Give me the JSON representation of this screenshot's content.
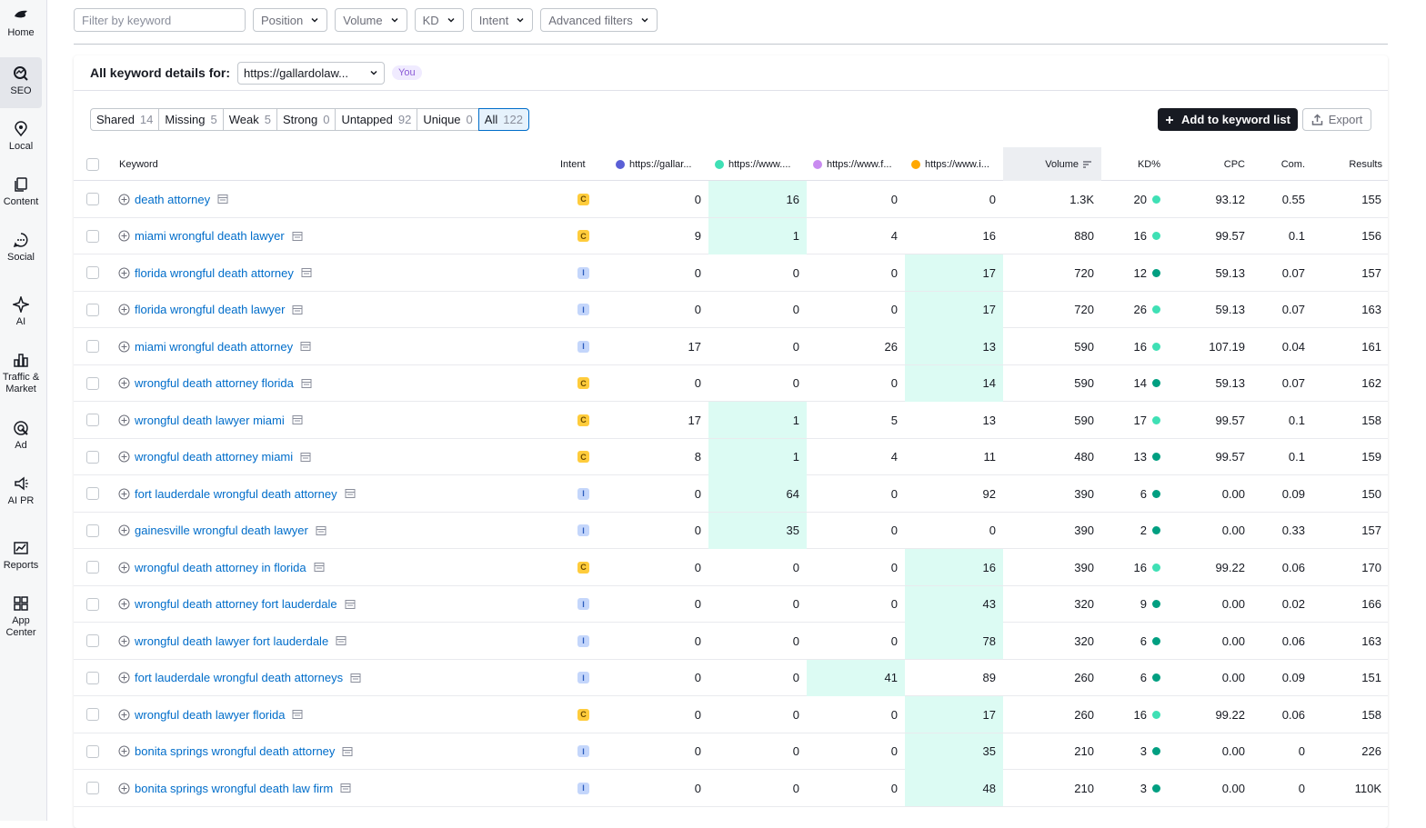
{
  "sidebar": {
    "items": [
      {
        "label": "Home",
        "icon": "home-icon"
      },
      {
        "label": "SEO",
        "icon": "seo-icon",
        "active": true
      },
      {
        "label": "Local",
        "icon": "local-pin-icon"
      },
      {
        "label": "Content",
        "icon": "content-icon"
      },
      {
        "label": "Social",
        "icon": "social-chat-icon"
      },
      {
        "label": "AI",
        "icon": "ai-icon"
      },
      {
        "label": "Traffic &",
        "label2": "Market",
        "icon": "traffic-chart-icon"
      },
      {
        "label": "Ad",
        "icon": "ad-icon"
      },
      {
        "label": "AI PR",
        "icon": "ai-pr-icon"
      },
      {
        "label": "Reports",
        "icon": "reports-icon"
      },
      {
        "label": "App",
        "label2": "Center",
        "icon": "app-center-icon"
      }
    ]
  },
  "filters": {
    "search_placeholder": "Filter by keyword",
    "position": "Position",
    "volume": "Volume",
    "kd": "KD",
    "intent": "Intent",
    "advanced": "Advanced filters"
  },
  "card": {
    "title": "All keyword details for:",
    "domain": "https://gallardolaw...",
    "you_badge": "You"
  },
  "segments": [
    {
      "label": "Shared",
      "count": "14"
    },
    {
      "label": "Missing",
      "count": "5"
    },
    {
      "label": "Weak",
      "count": "5"
    },
    {
      "label": "Strong",
      "count": "0"
    },
    {
      "label": "Untapped",
      "count": "92"
    },
    {
      "label": "Unique",
      "count": "0"
    },
    {
      "label": "All",
      "count": "122",
      "active": true
    }
  ],
  "actions": {
    "add_label": "Add to keyword list",
    "export_label": "Export"
  },
  "colors": {
    "d1": "#5a5fd6",
    "d2": "#3fe0b5",
    "d3": "#c98bf0",
    "d4": "#ffa800",
    "kd_light": "#3fe0b5",
    "kd_dark": "#009f81",
    "highlight": "#dcfbf3"
  },
  "columns": {
    "keyword": "Keyword",
    "intent": "Intent",
    "d1": "https://gallar...",
    "d2": "https://www....",
    "d3": "https://www.f...",
    "d4": "https://www.i...",
    "volume": "Volume",
    "kd": "KD%",
    "cpc": "CPC",
    "com": "Com.",
    "results": "Results"
  },
  "rows": [
    {
      "kw": "death attorney",
      "intent": "C",
      "d1": "0",
      "d2": "16",
      "d3": "0",
      "d4": "0",
      "hl": "d2",
      "vol": "1.3K",
      "kd": "20",
      "kdc": "light",
      "cpc": "93.12",
      "com": "0.55",
      "res": "155"
    },
    {
      "kw": "miami wrongful death lawyer",
      "intent": "C",
      "d1": "9",
      "d2": "1",
      "d3": "4",
      "d4": "16",
      "hl": "d2",
      "vol": "880",
      "kd": "16",
      "kdc": "light",
      "cpc": "99.57",
      "com": "0.1",
      "res": "156"
    },
    {
      "kw": "florida wrongful death attorney",
      "intent": "I",
      "d1": "0",
      "d2": "0",
      "d3": "0",
      "d4": "17",
      "hl": "d4",
      "vol": "720",
      "kd": "12",
      "kdc": "dark",
      "cpc": "59.13",
      "com": "0.07",
      "res": "157"
    },
    {
      "kw": "florida wrongful death lawyer",
      "intent": "I",
      "d1": "0",
      "d2": "0",
      "d3": "0",
      "d4": "17",
      "hl": "d4",
      "vol": "720",
      "kd": "26",
      "kdc": "light",
      "cpc": "59.13",
      "com": "0.07",
      "res": "163"
    },
    {
      "kw": "miami wrongful death attorney",
      "intent": "I",
      "d1": "17",
      "d2": "0",
      "d3": "26",
      "d4": "13",
      "hl": "d4",
      "vol": "590",
      "kd": "16",
      "kdc": "light",
      "cpc": "107.19",
      "com": "0.04",
      "res": "161"
    },
    {
      "kw": "wrongful death attorney florida",
      "intent": "C",
      "d1": "0",
      "d2": "0",
      "d3": "0",
      "d4": "14",
      "hl": "d4",
      "vol": "590",
      "kd": "14",
      "kdc": "dark",
      "cpc": "59.13",
      "com": "0.07",
      "res": "162"
    },
    {
      "kw": "wrongful death lawyer miami",
      "intent": "C",
      "d1": "17",
      "d2": "1",
      "d3": "5",
      "d4": "13",
      "hl": "d2",
      "vol": "590",
      "kd": "17",
      "kdc": "light",
      "cpc": "99.57",
      "com": "0.1",
      "res": "158"
    },
    {
      "kw": "wrongful death attorney miami",
      "intent": "C",
      "d1": "8",
      "d2": "1",
      "d3": "4",
      "d4": "11",
      "hl": "d2",
      "vol": "480",
      "kd": "13",
      "kdc": "dark",
      "cpc": "99.57",
      "com": "0.1",
      "res": "159"
    },
    {
      "kw": "fort lauderdale wrongful death attorney",
      "intent": "I",
      "d1": "0",
      "d2": "64",
      "d3": "0",
      "d4": "92",
      "hl": "d2",
      "vol": "390",
      "kd": "6",
      "kdc": "dark",
      "cpc": "0.00",
      "com": "0.09",
      "res": "150"
    },
    {
      "kw": "gainesville wrongful death lawyer",
      "intent": "I",
      "d1": "0",
      "d2": "35",
      "d3": "0",
      "d4": "0",
      "hl": "d2",
      "vol": "390",
      "kd": "2",
      "kdc": "dark",
      "cpc": "0.00",
      "com": "0.33",
      "res": "157"
    },
    {
      "kw": "wrongful death attorney in florida",
      "intent": "C",
      "d1": "0",
      "d2": "0",
      "d3": "0",
      "d4": "16",
      "hl": "d4",
      "vol": "390",
      "kd": "16",
      "kdc": "light",
      "cpc": "99.22",
      "com": "0.06",
      "res": "170"
    },
    {
      "kw": "wrongful death attorney fort lauderdale",
      "intent": "I",
      "d1": "0",
      "d2": "0",
      "d3": "0",
      "d4": "43",
      "hl": "d4",
      "vol": "320",
      "kd": "9",
      "kdc": "dark",
      "cpc": "0.00",
      "com": "0.02",
      "res": "166"
    },
    {
      "kw": "wrongful death lawyer fort lauderdale",
      "intent": "I",
      "d1": "0",
      "d2": "0",
      "d3": "0",
      "d4": "78",
      "hl": "d4",
      "vol": "320",
      "kd": "6",
      "kdc": "dark",
      "cpc": "0.00",
      "com": "0.06",
      "res": "163"
    },
    {
      "kw": "fort lauderdale wrongful death attorneys",
      "intent": "I",
      "d1": "0",
      "d2": "0",
      "d3": "41",
      "d4": "89",
      "hl": "d3",
      "vol": "260",
      "kd": "6",
      "kdc": "dark",
      "cpc": "0.00",
      "com": "0.09",
      "res": "151"
    },
    {
      "kw": "wrongful death lawyer florida",
      "intent": "C",
      "d1": "0",
      "d2": "0",
      "d3": "0",
      "d4": "17",
      "hl": "d4",
      "vol": "260",
      "kd": "16",
      "kdc": "light",
      "cpc": "99.22",
      "com": "0.06",
      "res": "158"
    },
    {
      "kw": "bonita springs wrongful death attorney",
      "intent": "I",
      "d1": "0",
      "d2": "0",
      "d3": "0",
      "d4": "35",
      "hl": "d4",
      "vol": "210",
      "kd": "3",
      "kdc": "dark",
      "cpc": "0.00",
      "com": "0",
      "res": "226"
    },
    {
      "kw": "bonita springs wrongful death law firm",
      "intent": "I",
      "d1": "0",
      "d2": "0",
      "d3": "0",
      "d4": "48",
      "hl": "d4",
      "vol": "210",
      "kd": "3",
      "kdc": "dark",
      "cpc": "0.00",
      "com": "0",
      "res": "110K"
    }
  ]
}
